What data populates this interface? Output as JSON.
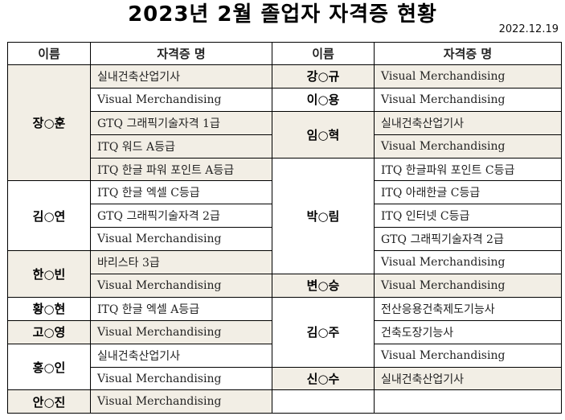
{
  "title": "2023년 2월 졸업자 자격증 현황",
  "date": "2022.12.19",
  "headers": {
    "name": "이름",
    "cert": "자격증 명"
  },
  "shade_color": "#f2eee5",
  "left": [
    {
      "name": "장○훈",
      "shaded": true,
      "certs": [
        {
          "text": "실내건축산업기사",
          "shaded": true
        },
        {
          "text": "Visual Merchandising",
          "shaded": false
        },
        {
          "text": "GTQ 그래픽기술자격 1급",
          "shaded": true
        },
        {
          "text": "ITQ 워드 A등급",
          "shaded": true
        },
        {
          "text": "ITQ 한글 파워 포인트 A등급",
          "shaded": true
        }
      ]
    },
    {
      "name": "김○연",
      "shaded": false,
      "certs": [
        {
          "text": "ITQ 한글 엑셀 C등급",
          "shaded": false
        },
        {
          "text": "GTQ 그래픽기술자격 2급",
          "shaded": false
        },
        {
          "text": "Visual Merchandising",
          "shaded": false
        }
      ]
    },
    {
      "name": "한○빈",
      "shaded": true,
      "certs": [
        {
          "text": "바리스타 3급",
          "shaded": true
        },
        {
          "text": "Visual Merchandising",
          "shaded": true
        }
      ]
    },
    {
      "name": "황○현",
      "shaded": false,
      "certs": [
        {
          "text": "ITQ 한글 엑셀 A등급",
          "shaded": false
        }
      ]
    },
    {
      "name": "고○영",
      "shaded": true,
      "certs": [
        {
          "text": "Visual Merchandising",
          "shaded": true
        }
      ]
    },
    {
      "name": "홍○인",
      "shaded": false,
      "certs": [
        {
          "text": "실내건축산업기사",
          "shaded": false
        },
        {
          "text": "Visual Merchandising",
          "shaded": false
        }
      ]
    },
    {
      "name": "안○진",
      "shaded": true,
      "certs": [
        {
          "text": "Visual Merchandising",
          "shaded": true
        }
      ]
    }
  ],
  "right": [
    {
      "name": "강○규",
      "shaded": true,
      "certs": [
        {
          "text": "Visual Merchandising",
          "shaded": true
        }
      ]
    },
    {
      "name": "이○용",
      "shaded": false,
      "certs": [
        {
          "text": "Visual Merchandising",
          "shaded": false
        }
      ]
    },
    {
      "name": "임○혁",
      "shaded": true,
      "certs": [
        {
          "text": "실내건축산업기사",
          "shaded": true
        },
        {
          "text": "Visual Merchandising",
          "shaded": true
        }
      ]
    },
    {
      "name": "박○림",
      "shaded": false,
      "certs": [
        {
          "text": "ITQ 한글파워 포인트 C등급",
          "shaded": false
        },
        {
          "text": "ITQ 아래한글 C등급",
          "shaded": false
        },
        {
          "text": "ITQ 인터넷 C등급",
          "shaded": false
        },
        {
          "text": "GTQ 그래픽기술자격 2급",
          "shaded": false
        },
        {
          "text": "Visual Merchandising",
          "shaded": false
        }
      ]
    },
    {
      "name": "변○승",
      "shaded": true,
      "certs": [
        {
          "text": "Visual Merchandising",
          "shaded": true
        }
      ]
    },
    {
      "name": "김○주",
      "shaded": false,
      "certs": [
        {
          "text": "전산응용건축제도기능사",
          "shaded": false
        },
        {
          "text": "건축도장기능사",
          "shaded": false
        },
        {
          "text": "Visual Merchandising",
          "shaded": false
        }
      ]
    },
    {
      "name": "신○수",
      "shaded": true,
      "certs": [
        {
          "text": "실내건축산업기사",
          "shaded": true
        }
      ]
    },
    {
      "name": "",
      "shaded": false,
      "certs": [
        {
          "text": "",
          "shaded": false
        }
      ]
    }
  ]
}
